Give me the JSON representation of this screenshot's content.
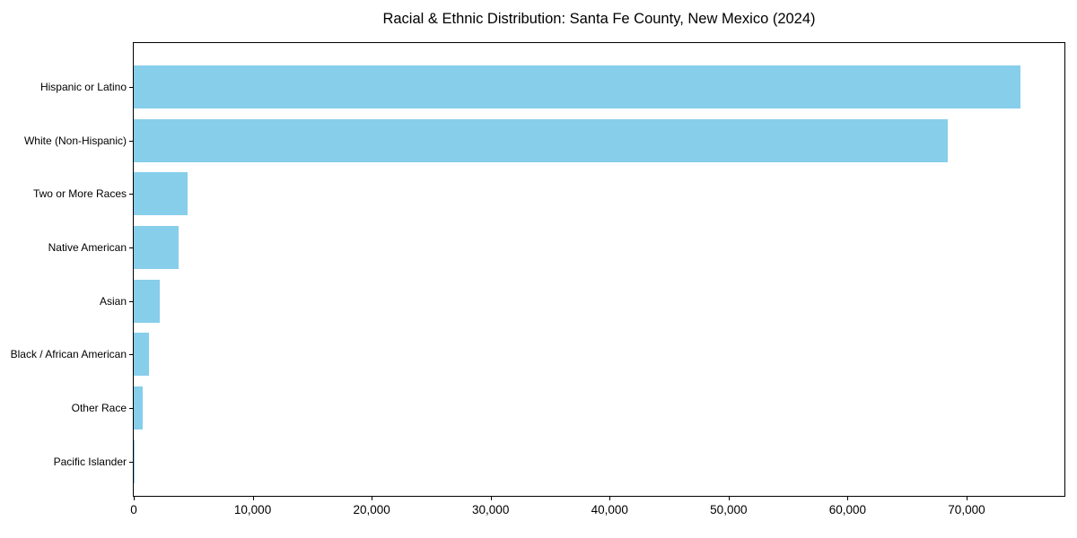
{
  "title": "Racial & Ethnic Distribution: Santa Fe County, New Mexico (2024)",
  "colors": {
    "bar": "#87CEEB",
    "axis": "#000000",
    "text": "#000000",
    "background": "#ffffff"
  },
  "chart_data": {
    "type": "bar",
    "orientation": "horizontal",
    "title": "Racial & Ethnic Distribution: Santa Fe County, New Mexico (2024)",
    "xlabel": "",
    "ylabel": "",
    "categories": [
      "Hispanic or Latino",
      "White (Non-Hispanic)",
      "Two or More Races",
      "Native American",
      "Asian",
      "Black / African American",
      "Other Race",
      "Pacific Islander"
    ],
    "values": [
      74500,
      68400,
      4500,
      3800,
      2200,
      1300,
      750,
      100
    ],
    "xlim": [
      0,
      78225
    ],
    "x_ticks": [
      0,
      10000,
      20000,
      30000,
      40000,
      50000,
      60000,
      70000
    ],
    "x_tick_labels": [
      "0",
      "10,000",
      "20,000",
      "30,000",
      "40,000",
      "50,000",
      "60,000",
      "70,000"
    ],
    "bar_color": "#87CEEB",
    "grid": false,
    "legend": null
  }
}
